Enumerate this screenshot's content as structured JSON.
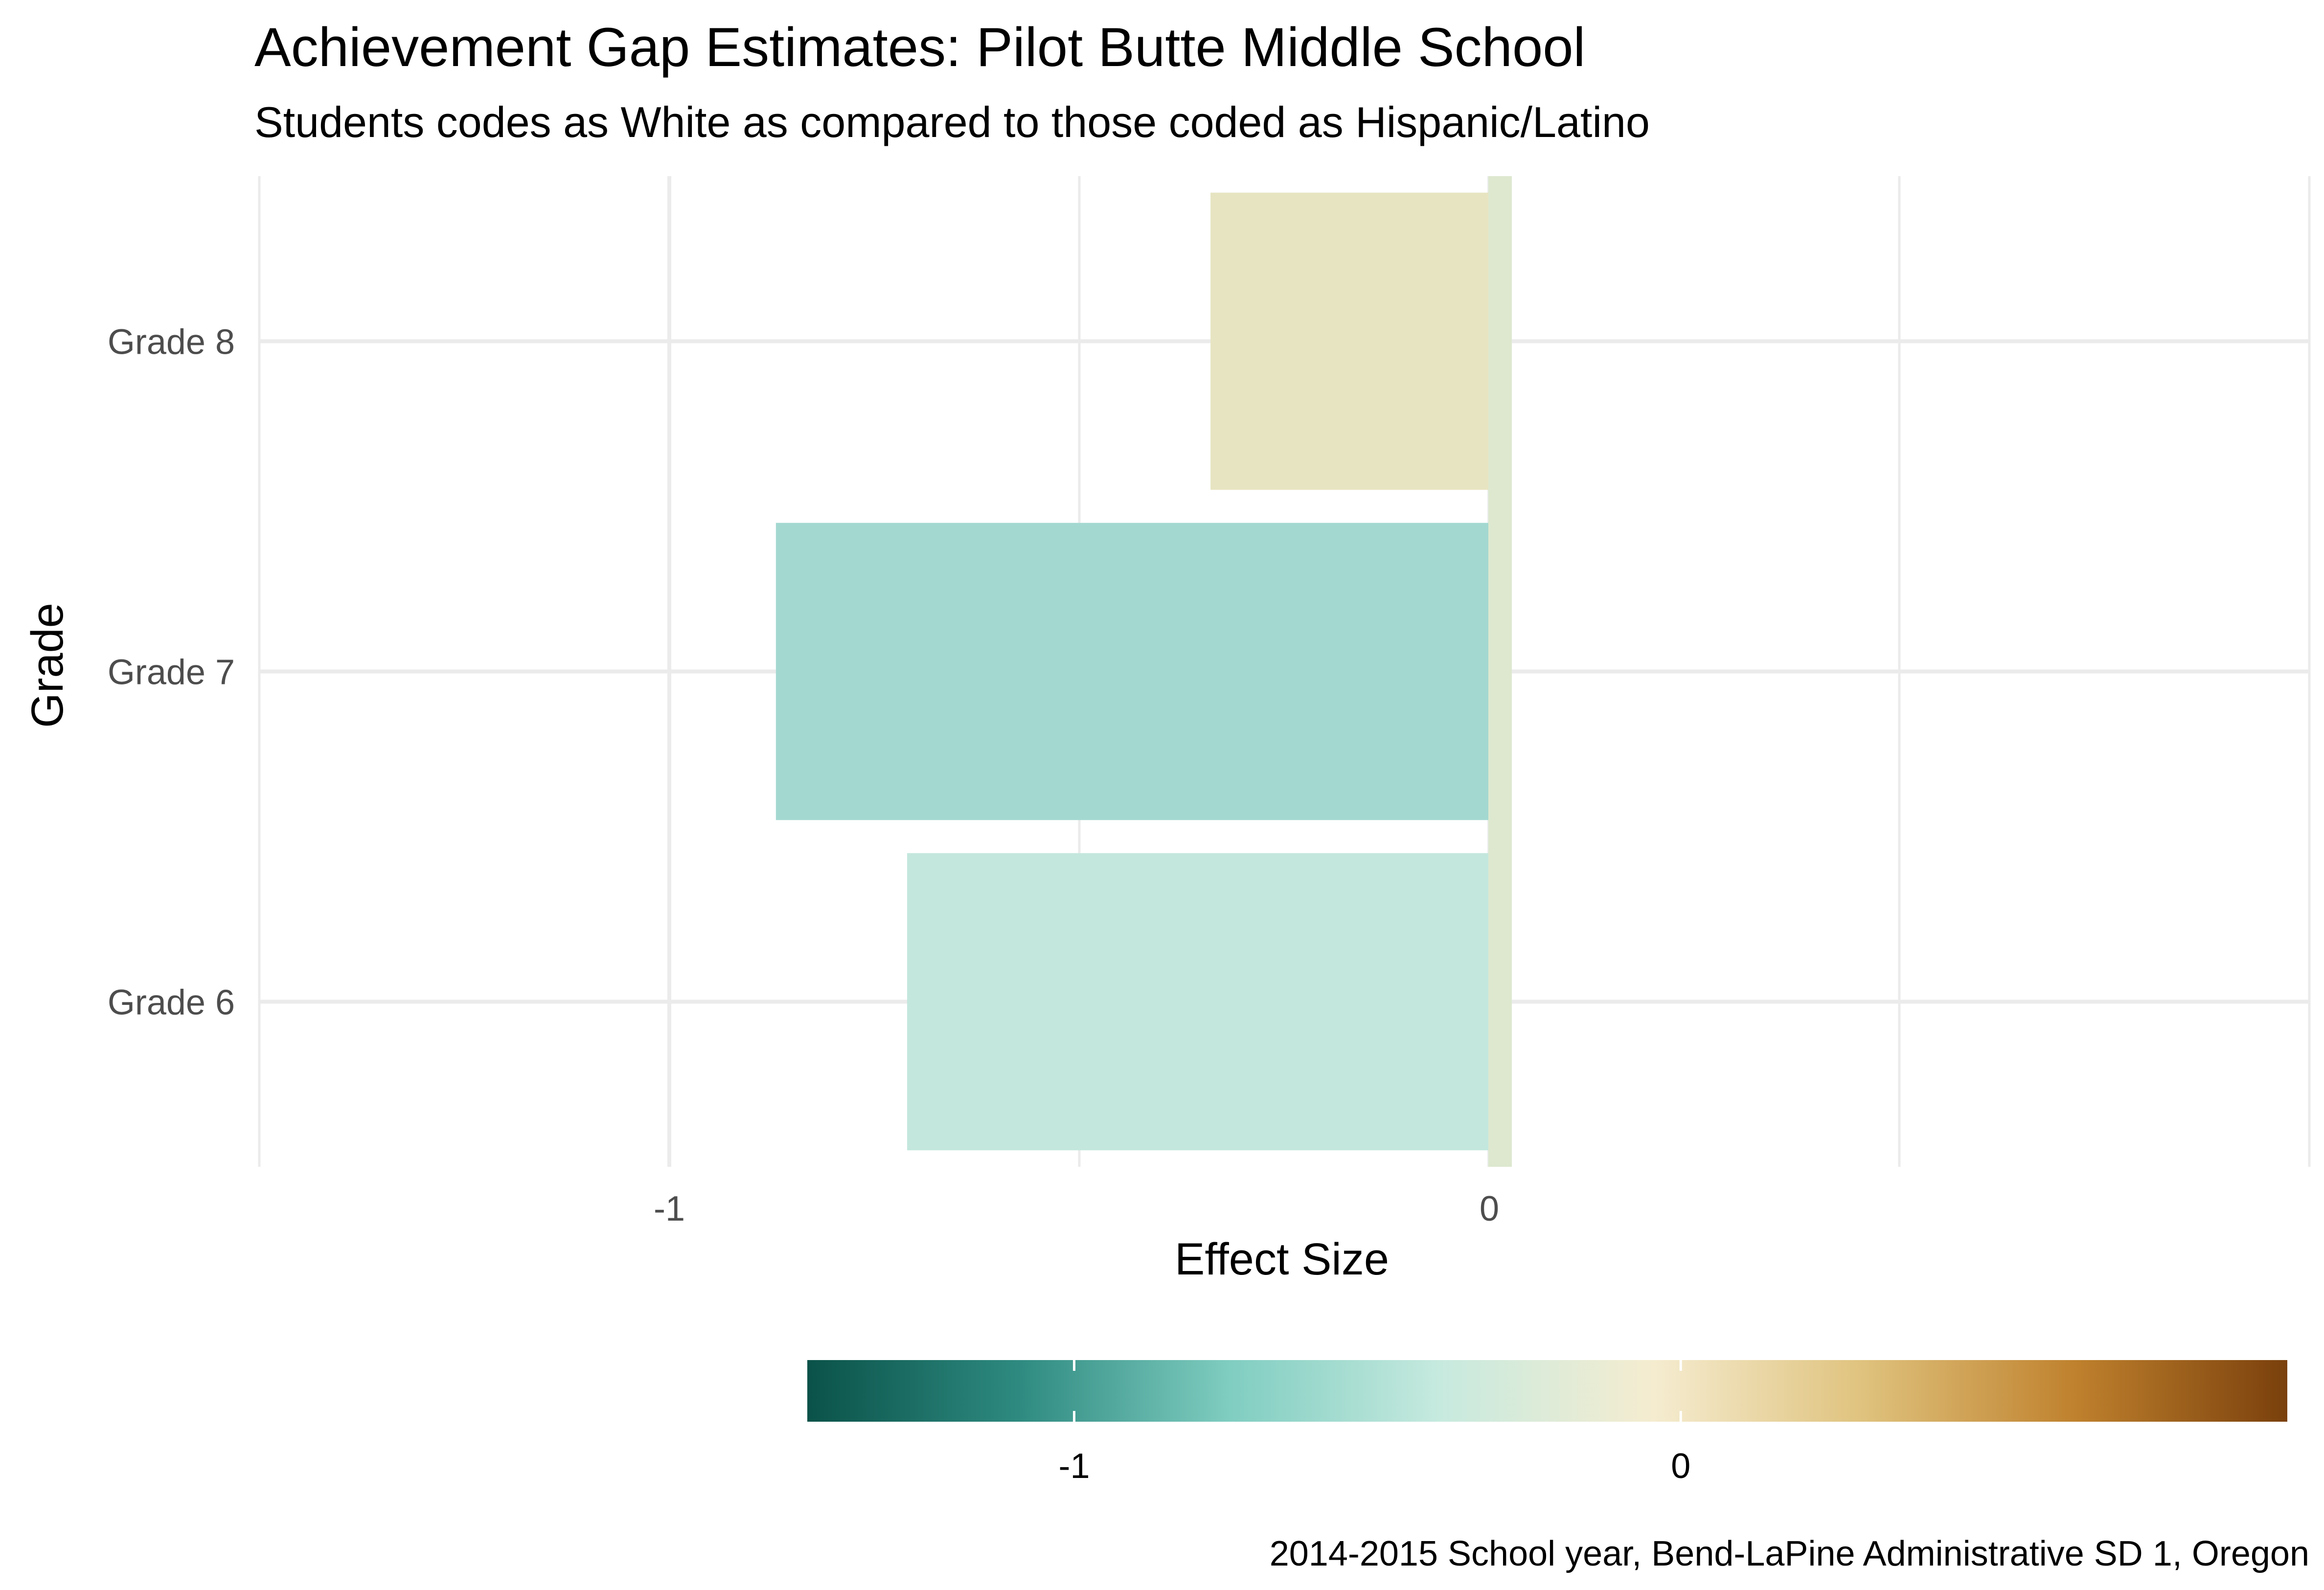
{
  "chart_data": {
    "type": "bar",
    "orientation": "horizontal",
    "title": "Achievement Gap Estimates: Pilot Butte Middle School",
    "subtitle": "Students codes as White as compared to those coded as Hispanic/Latino",
    "xlabel": "Effect Size",
    "ylabel": "Grade",
    "caption": "2014-2015 School year, Bend-LaPine Administrative SD 1, Oregon",
    "categories": [
      "Grade 6",
      "Grade 7",
      "Grade 8"
    ],
    "values": [
      -0.71,
      -0.87,
      -0.34
    ],
    "xlim": [
      -1.5,
      1.0
    ],
    "x_ticks": [
      -1,
      0
    ],
    "x_tick_labels": [
      "-1",
      "0"
    ],
    "grid": true,
    "zero_line_color": "#dde8cf",
    "legend": {
      "type": "colorbar",
      "placement": "bottom",
      "range": [
        -1.44,
        1.0
      ],
      "ticks": [
        -1,
        0
      ],
      "tick_labels": [
        "-1",
        "0"
      ],
      "colors": [
        "#0a5249",
        "#2e8a80",
        "#80cdc1",
        "#c7eadf",
        "#f5ecd0",
        "#dfc27d",
        "#bf812d",
        "#7a400c"
      ]
    },
    "colors": {
      "Grade 6": "#c4e7dd",
      "Grade 7": "#a3d8d0",
      "Grade 8": "#e7e4c2"
    }
  }
}
